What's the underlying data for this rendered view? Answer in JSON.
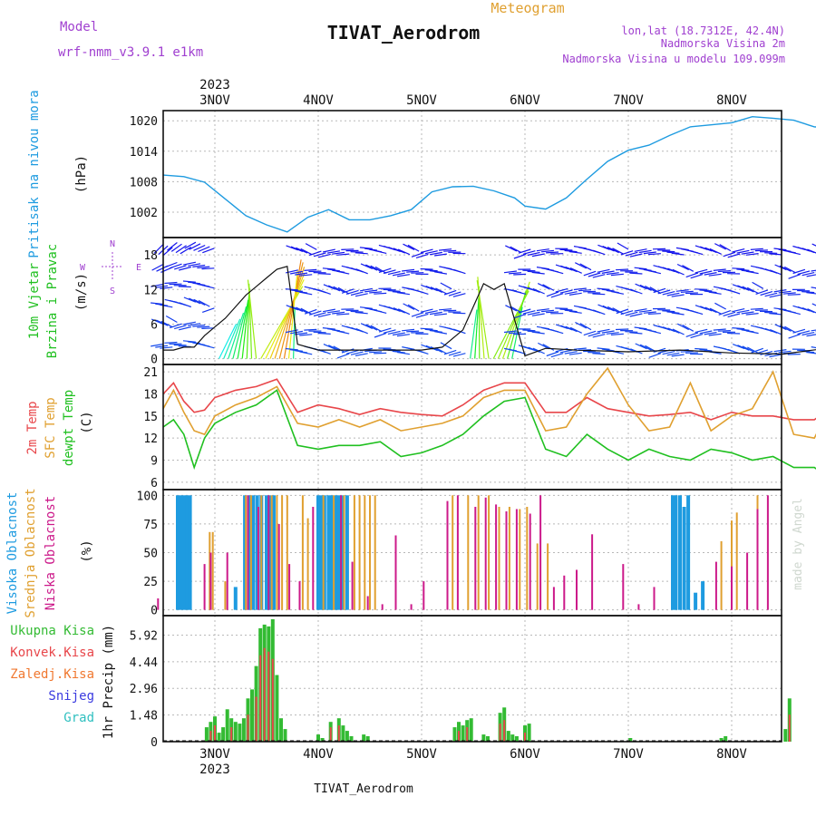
{
  "header": {
    "model_label": "Model",
    "model_name": "wrf-nmm_v3.9.1 e1km",
    "title": "TIVAT_Aerodrom",
    "subtitle": "Meteogram",
    "lonlat": "lon,lat (18.7312E, 42.4N)",
    "elev": "Nadmorska Visina 2m",
    "elev_model": "Nadmorska Visina u modelu 109.099m",
    "year_top": "2023",
    "year_bottom": "2023",
    "footer": "TIVAT_Aerodrom",
    "watermark": "made by Angel"
  },
  "colors": {
    "pressure": "#1e9be0",
    "temp2m": "#e8464a",
    "sfc": "#e0a030",
    "dew": "#20c020",
    "cloud_high": "#1e9be0",
    "cloud_mid": "#e0a030",
    "cloud_low": "#cc1a8a",
    "precip_total": "#33bb33",
    "precip_conv": "#e8464a",
    "purple_label": "#a040d0",
    "orange_label": "#e0a030"
  },
  "chart_data": [
    {
      "id": "pressure",
      "type": "line",
      "ylabel_1": "Pritisak na nivou mora",
      "ylabel_2": "(hPa)",
      "x_days": [
        "3NOV",
        "4NOV",
        "5NOV",
        "6NOV",
        "7NOV",
        "8NOV"
      ],
      "ylim": [
        997,
        1022
      ],
      "yticks": [
        1002,
        1008,
        1014,
        1020
      ],
      "ytick_labels": [
        "1002",
        "1008",
        "1014",
        "1020"
      ],
      "grid": true,
      "series": [
        {
          "x": [
            -0.5,
            -0.3,
            -0.1,
            0.1,
            0.3,
            0.5,
            0.7,
            0.9,
            1.1,
            1.3,
            1.5,
            1.7,
            1.9,
            2.1,
            2.3,
            2.5,
            2.7,
            2.9,
            3.0,
            3.2,
            3.4,
            3.6,
            3.8,
            4.0,
            4.2,
            4.4,
            4.6,
            4.8,
            5.0,
            5.2,
            5.4,
            5.6,
            5.8,
            6.0,
            6.2
          ],
          "y": [
            1009.3,
            1009.0,
            1007.9,
            1004.6,
            1001.3,
            999.5,
            998.1,
            1001.0,
            1002.5,
            1000.5,
            1000.5,
            1001.3,
            1002.5,
            1006.0,
            1007.0,
            1007.1,
            1006.2,
            1004.8,
            1003.2,
            1002.6,
            1004.8,
            1008.5,
            1012.0,
            1014.2,
            1015.2,
            1017.1,
            1018.8,
            1019.2,
            1019.6,
            1020.8,
            1020.5,
            1020.1,
            1018.8,
            1018.6,
            1019.6
          ]
        }
      ]
    },
    {
      "id": "wind",
      "type": "line",
      "ylabel_1": "10m Vjetar",
      "ylabel_2": "Brzina i Pravac",
      "ylabel_3": "(m/s)",
      "compass_labels": [
        "W",
        "E",
        "N",
        "S"
      ],
      "ylim": [
        -1,
        21
      ],
      "yticks": [
        0,
        6,
        12,
        18
      ],
      "ytick_labels": [
        "0",
        "6",
        "12",
        "18"
      ],
      "grid": true,
      "series": [
        {
          "name": "speed",
          "x": [
            -0.5,
            -0.4,
            -0.3,
            -0.2,
            -0.1,
            0.0,
            0.1,
            0.2,
            0.3,
            0.4,
            0.5,
            0.6,
            0.7,
            0.8,
            1.0,
            1.5,
            2.0,
            2.2,
            2.4,
            2.5,
            2.6,
            2.7,
            2.8,
            3.0,
            3.2,
            3.5,
            4.0,
            4.5,
            5.0,
            5.5,
            6.0,
            6.2
          ],
          "y": [
            1.5,
            1.5,
            2.0,
            2.0,
            4.0,
            5.5,
            7.0,
            9.0,
            11.0,
            12.5,
            14.0,
            15.5,
            16.0,
            2.5,
            1.5,
            1.5,
            1.5,
            2.0,
            5.0,
            9.0,
            13.0,
            12.0,
            13.0,
            0.5,
            1.8,
            1.5,
            1.2,
            1.5,
            1.0,
            0.8,
            2.0,
            3.0
          ]
        }
      ]
    },
    {
      "id": "temperature",
      "type": "line",
      "ylabel_1": "2m Temp",
      "ylabel_2": "SFC Temp",
      "ylabel_3": "dewpt Temp",
      "ylabel_4": "(C)",
      "ylim": [
        5,
        22
      ],
      "yticks": [
        6,
        9,
        12,
        15,
        18,
        21
      ],
      "ytick_labels": [
        "6",
        "9",
        "12",
        "15",
        "18",
        "21"
      ],
      "grid": true,
      "series": [
        {
          "name": "temp2m",
          "x": [
            -0.5,
            -0.4,
            -0.3,
            -0.2,
            -0.1,
            0.0,
            0.2,
            0.4,
            0.6,
            0.8,
            1.0,
            1.2,
            1.4,
            1.6,
            1.8,
            2.0,
            2.2,
            2.4,
            2.6,
            2.8,
            3.0,
            3.2,
            3.4,
            3.6,
            3.8,
            4.0,
            4.2,
            4.4,
            4.6,
            4.8,
            5.0,
            5.2,
            5.4,
            5.6,
            5.8,
            6.0,
            6.2
          ],
          "y": [
            18.0,
            19.5,
            17.0,
            15.5,
            15.8,
            17.5,
            18.5,
            19.0,
            20.0,
            15.5,
            16.5,
            16.0,
            15.2,
            16.0,
            15.5,
            15.2,
            15.0,
            16.5,
            18.5,
            19.5,
            19.5,
            15.5,
            15.5,
            17.5,
            16.0,
            15.5,
            15.0,
            15.2,
            15.5,
            14.5,
            15.5,
            15.0,
            15.0,
            14.5,
            14.5,
            16.5,
            16.0
          ]
        },
        {
          "name": "sfc",
          "x": [
            -0.5,
            -0.4,
            -0.3,
            -0.2,
            -0.1,
            0.0,
            0.2,
            0.4,
            0.6,
            0.8,
            1.0,
            1.2,
            1.4,
            1.6,
            1.8,
            2.0,
            2.2,
            2.4,
            2.6,
            2.8,
            3.0,
            3.2,
            3.4,
            3.6,
            3.8,
            4.0,
            4.2,
            4.4,
            4.6,
            4.8,
            5.0,
            5.2,
            5.4,
            5.6,
            5.8,
            6.0,
            6.2
          ],
          "y": [
            16.0,
            18.5,
            15.5,
            13.0,
            12.5,
            15.0,
            16.5,
            17.5,
            19.0,
            14.0,
            13.5,
            14.5,
            13.5,
            14.5,
            13.0,
            13.5,
            14.0,
            15.0,
            17.5,
            18.5,
            18.5,
            13.0,
            13.5,
            18.0,
            21.5,
            16.5,
            13.0,
            13.5,
            19.5,
            13.0,
            15.0,
            16.0,
            21.0,
            12.5,
            12.0,
            17.5,
            18.5
          ]
        },
        {
          "name": "dew",
          "x": [
            -0.5,
            -0.4,
            -0.3,
            -0.2,
            -0.1,
            0.0,
            0.2,
            0.4,
            0.6,
            0.8,
            1.0,
            1.2,
            1.4,
            1.6,
            1.8,
            2.0,
            2.2,
            2.4,
            2.6,
            2.8,
            3.0,
            3.2,
            3.4,
            3.6,
            3.8,
            4.0,
            4.2,
            4.4,
            4.6,
            4.8,
            5.0,
            5.2,
            5.4,
            5.6,
            5.8,
            6.0,
            6.2
          ],
          "y": [
            13.5,
            14.5,
            12.5,
            8.0,
            12.0,
            14.0,
            15.5,
            16.5,
            18.5,
            11.0,
            10.5,
            11.0,
            11.0,
            11.5,
            9.5,
            10.0,
            11.0,
            12.5,
            15.0,
            17.0,
            17.5,
            10.5,
            9.5,
            12.5,
            10.5,
            9.0,
            10.5,
            9.5,
            9.0,
            10.5,
            10.0,
            9.0,
            9.5,
            8.0,
            8.0,
            6.0,
            7.5
          ]
        }
      ]
    },
    {
      "id": "clouds",
      "type": "bar",
      "ylabel_1": "Visoka Oblacnost",
      "ylabel_2": "Srednja Oblacnost",
      "ylabel_3": "Niska Oblacnost",
      "ylabel_4": "(%)",
      "ylim": [
        -5,
        105
      ],
      "yticks": [
        0,
        25,
        50,
        75,
        100
      ],
      "ytick_labels": [
        "0",
        "25",
        "50",
        "75",
        "100"
      ],
      "grid": true,
      "series": [
        {
          "name": "high",
          "x": [
            -0.36,
            -0.33,
            -0.3,
            -0.27,
            -0.24,
            0.2,
            0.29,
            0.33,
            0.37,
            0.41,
            0.45,
            0.5,
            0.53,
            0.57,
            1.0,
            1.03,
            1.06,
            1.1,
            1.13,
            1.17,
            1.2,
            1.24,
            1.28,
            4.43,
            4.46,
            4.5,
            4.54,
            4.58,
            4.65,
            4.72
          ],
          "values": [
            100,
            100,
            100,
            100,
            100,
            20,
            100,
            100,
            100,
            100,
            100,
            100,
            100,
            100,
            100,
            100,
            100,
            100,
            100,
            100,
            100,
            100,
            100,
            100,
            100,
            100,
            90,
            100,
            15,
            25
          ]
        },
        {
          "name": "mid",
          "x": [
            -0.05,
            -0.02,
            0.1,
            0.3,
            0.35,
            0.45,
            0.55,
            0.6,
            0.65,
            0.7,
            0.85,
            0.9,
            1.05,
            1.15,
            1.25,
            1.35,
            1.4,
            1.45,
            1.5,
            1.55,
            2.3,
            2.45,
            2.55,
            2.65,
            2.75,
            2.85,
            2.95,
            3.02,
            3.12,
            3.22,
            4.9,
            5.0,
            5.05,
            5.25
          ],
          "values": [
            68,
            68,
            25,
            100,
            100,
            100,
            100,
            100,
            100,
            100,
            100,
            80,
            100,
            100,
            100,
            100,
            100,
            100,
            100,
            100,
            100,
            100,
            100,
            100,
            90,
            90,
            88,
            90,
            58,
            58,
            60,
            78,
            85,
            100
          ]
        },
        {
          "name": "low",
          "x": [
            -0.55,
            -0.1,
            -0.04,
            0.12,
            0.32,
            0.42,
            0.52,
            0.62,
            0.72,
            0.82,
            0.95,
            1.22,
            1.33,
            1.48,
            1.62,
            1.75,
            1.9,
            2.02,
            2.25,
            2.35,
            2.52,
            2.62,
            2.72,
            2.82,
            2.92,
            3.05,
            3.15,
            3.28,
            3.38,
            3.5,
            3.65,
            3.95,
            4.1,
            4.25,
            4.85,
            5.0,
            5.15,
            5.25,
            5.35
          ],
          "values": [
            10,
            40,
            50,
            50,
            100,
            90,
            100,
            75,
            40,
            25,
            90,
            100,
            42,
            12,
            5,
            65,
            5,
            25,
            95,
            100,
            90,
            98,
            92,
            86,
            88,
            84,
            100,
            20,
            30,
            35,
            66,
            40,
            5,
            20,
            42,
            38,
            50,
            88,
            100
          ]
        }
      ]
    },
    {
      "id": "precip",
      "type": "bar",
      "ylabel_1": "1hr Precip (mm)",
      "legend": [
        "Ukupna Kisa",
        "Konvek.Kisa",
        "Zaledj.Kisa",
        "Snijeg",
        "Grad"
      ],
      "legend_colors": [
        "#33bb33",
        "#e8464a",
        "#f07830",
        "#3a3ae0",
        "#30c0c0"
      ],
      "ylim": [
        0,
        7.0
      ],
      "yticks": [
        0,
        1.48,
        2.96,
        4.44,
        5.92
      ],
      "ytick_labels": [
        "0",
        "1.48",
        "2.96",
        "4.44",
        "5.92"
      ],
      "grid": true,
      "series": [
        {
          "name": "total",
          "x": [
            -0.08,
            -0.04,
            0.0,
            0.04,
            0.08,
            0.12,
            0.16,
            0.2,
            0.24,
            0.28,
            0.32,
            0.36,
            0.4,
            0.44,
            0.48,
            0.52,
            0.56,
            0.6,
            0.64,
            0.68,
            1.0,
            1.04,
            1.12,
            1.2,
            1.24,
            1.28,
            1.32,
            1.44,
            1.48,
            2.32,
            2.36,
            2.4,
            2.44,
            2.48,
            2.6,
            2.64,
            2.76,
            2.8,
            2.84,
            2.88,
            2.92,
            3.0,
            3.04,
            4.02,
            4.9,
            4.94,
            5.52,
            5.56
          ],
          "values": [
            0.8,
            1.1,
            1.4,
            0.5,
            0.8,
            1.8,
            1.3,
            1.1,
            1.0,
            1.3,
            2.4,
            2.9,
            4.2,
            6.3,
            6.5,
            6.4,
            6.8,
            3.7,
            1.3,
            0.7,
            0.4,
            0.2,
            1.1,
            1.3,
            0.9,
            0.6,
            0.3,
            0.4,
            0.3,
            0.8,
            1.1,
            0.9,
            1.2,
            1.3,
            0.4,
            0.3,
            1.6,
            1.9,
            0.6,
            0.4,
            0.3,
            0.9,
            1.0,
            0.2,
            0.2,
            0.3,
            0.7,
            2.4
          ]
        },
        {
          "name": "convective",
          "x": [
            -0.04,
            0.0,
            0.16,
            0.32,
            0.4,
            0.44,
            0.48,
            0.52,
            0.56,
            1.12,
            1.2,
            2.36,
            2.44,
            2.76,
            2.8,
            3.0,
            5.56
          ],
          "values": [
            0.6,
            0.9,
            0.8,
            1.5,
            2.5,
            4.8,
            5.2,
            5.0,
            4.6,
            0.8,
            0.9,
            0.6,
            0.8,
            1.0,
            1.2,
            0.5,
            1.5
          ]
        }
      ]
    }
  ]
}
